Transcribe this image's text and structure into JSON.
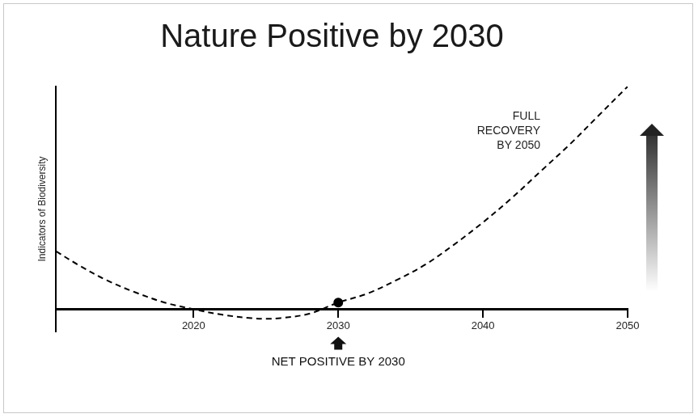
{
  "chart_data": {
    "type": "line",
    "title": "Nature Positive by 2030",
    "y_label": "Indicators of Biodiversity",
    "xlim": [
      2010.5,
      2050
    ],
    "xticks": [
      2020,
      2030,
      2040,
      2050
    ],
    "ylim": [
      -10,
      100
    ],
    "yticks": [],
    "tick_labels": "x",
    "grid": false,
    "series": [
      {
        "x": [
          2010.5,
          2012,
          2014,
          2016,
          2018,
          2020,
          2022,
          2024,
          2025,
          2026,
          2028,
          2030,
          2032,
          2034,
          2036,
          2038,
          2040,
          2042,
          2044,
          2046,
          2048,
          2050
        ],
        "values": [
          26,
          20,
          13,
          7.5,
          3,
          0,
          -2.5,
          -4,
          -4.3,
          -4,
          -2,
          3,
          7,
          13,
          20,
          29,
          39,
          50,
          62,
          74,
          87,
          100
        ],
        "color": "#000000",
        "line_style": "dashed",
        "marker": "none"
      },
      {
        "x": [
          2030
        ],
        "values": [
          3
        ],
        "color": "#000000",
        "line_style": "none",
        "marker": "circle"
      }
    ],
    "annotations": [
      {
        "text": "FULL RECOVERY BY 2050"
      },
      {
        "text": "NET POSITIVE BY 2030"
      }
    ]
  }
}
